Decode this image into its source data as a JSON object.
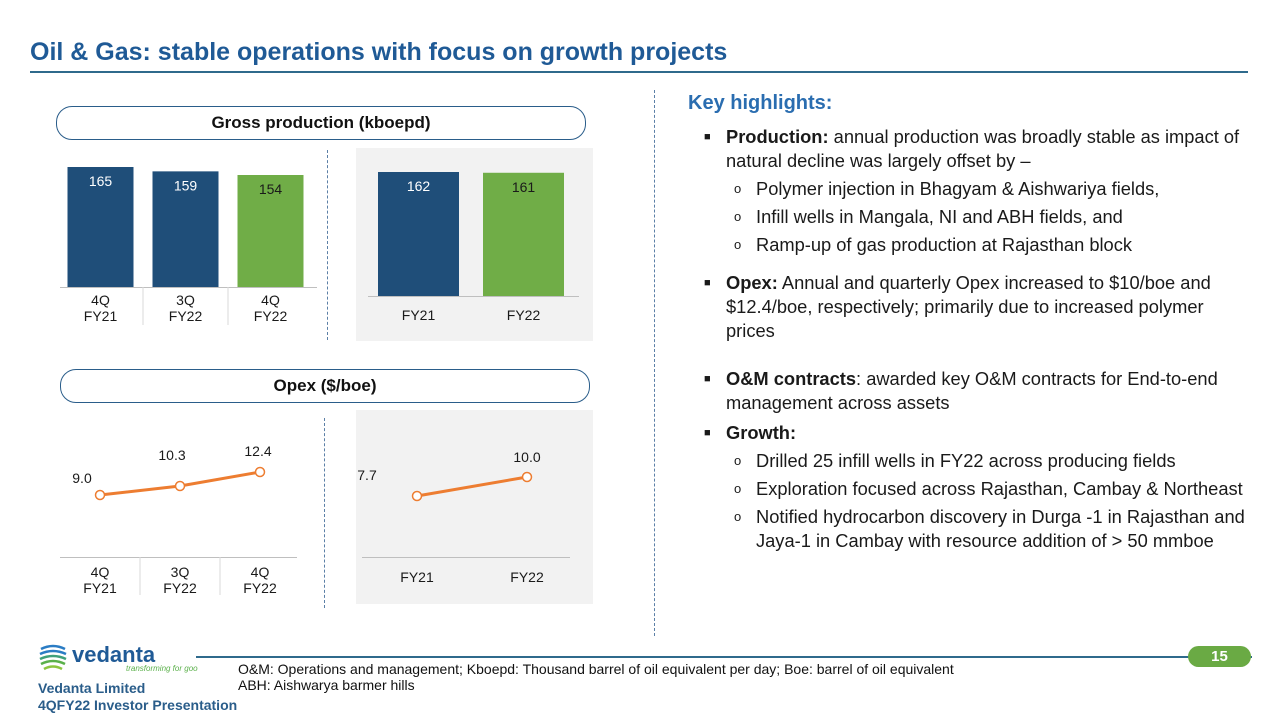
{
  "slide": {
    "title": "Oil & Gas: stable operations with focus on growth projects",
    "page_number": "15"
  },
  "sections": {
    "production_label": "Gross production (kboepd)",
    "opex_label": "Opex ($/boe)"
  },
  "chart_data": [
    {
      "type": "bar",
      "title": "Gross production (kboepd)",
      "categories": [
        [
          "4Q",
          "FY21"
        ],
        [
          "3Q",
          "FY22"
        ],
        [
          "4Q",
          "FY22"
        ]
      ],
      "values": [
        165,
        159,
        154
      ],
      "colors": [
        "#1f4e79",
        "#1f4e79",
        "#70ad47"
      ],
      "value_labels": [
        "165",
        "159",
        "154"
      ]
    },
    {
      "type": "bar",
      "title": "Gross production (kboepd)",
      "categories": [
        [
          "FY21"
        ],
        [
          "FY22"
        ]
      ],
      "values": [
        162,
        161
      ],
      "colors": [
        "#1f4e79",
        "#70ad47"
      ],
      "value_labels": [
        "162",
        "161"
      ]
    },
    {
      "type": "line",
      "title": "Opex ($/boe)",
      "categories": [
        [
          "4Q",
          "FY21"
        ],
        [
          "3Q",
          "FY22"
        ],
        [
          "4Q",
          "FY22"
        ]
      ],
      "values": [
        9.0,
        10.3,
        12.4
      ],
      "value_labels": [
        "9.0",
        "10.3",
        "12.4"
      ],
      "color": "#ed7d31"
    },
    {
      "type": "line",
      "title": "Opex ($/boe)",
      "categories": [
        [
          "FY21"
        ],
        [
          "FY22"
        ]
      ],
      "values": [
        7.7,
        10.0
      ],
      "value_labels": [
        "7.7",
        "10.0"
      ],
      "color": "#ed7d31"
    }
  ],
  "highlights": {
    "title": "Key highlights:",
    "production_bold": "Production:",
    "production_text": " annual production was broadly stable as impact of natural decline was largely offset by –",
    "production_subs": [
      "Polymer injection in Bhagyam & Aishwariya fields,",
      "Infill wells in Mangala, NI and ABH fields, and",
      "Ramp-up of gas production at Rajasthan block"
    ],
    "opex_bold": "Opex:",
    "opex_text": " Annual and quarterly Opex increased to $10/boe and $12.4/boe, respectively; primarily due to increased polymer prices",
    "om_bold": "O&M contracts",
    "om_text": ": awarded key O&M contracts for End-to-end management across assets",
    "growth_bold": "Growth:",
    "growth_subs": [
      "Drilled 25 infill wells in FY22 across producing fields",
      "Exploration focused across Rajasthan, Cambay & Northeast",
      "Notified hydrocarbon discovery in Durga -1 in Rajasthan and Jaya-1 in Cambay with resource addition of > 50 mmboe"
    ]
  },
  "footer": {
    "footnote_line1": "O&M: Operations and management; Kboepd: Thousand barrel of oil equivalent per day; Boe: barrel of oil equivalent",
    "footnote_line2": "ABH: Aishwarya barmer hills",
    "company": "Vedanta Limited",
    "presentation": "4QFY22 Investor Presentation",
    "logo_text": "vedanta",
    "logo_tagline": "transforming for good"
  },
  "colors": {
    "title_blue": "#1f5a96",
    "bar_blue": "#1f4e79",
    "bar_green": "#70ad47",
    "line_orange": "#ed7d31",
    "badge_green": "#6aaa44"
  }
}
